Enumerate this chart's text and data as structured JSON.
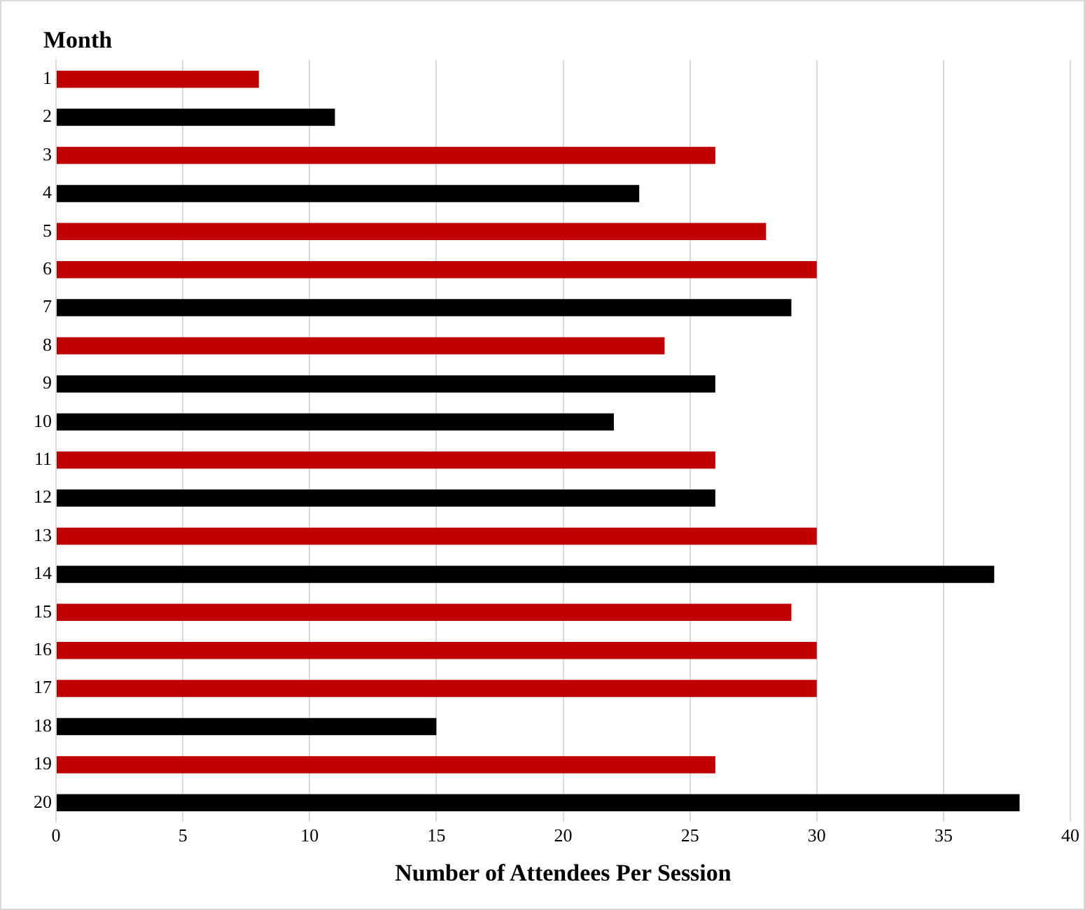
{
  "chart_data": {
    "type": "bar",
    "orientation": "horizontal",
    "ylabel": "Month",
    "xlabel": "Number of Attendees Per Session",
    "categories": [
      "1",
      "2",
      "3",
      "4",
      "5",
      "6",
      "7",
      "8",
      "9",
      "10",
      "11",
      "12",
      "13",
      "14",
      "15",
      "16",
      "17",
      "18",
      "19",
      "20"
    ],
    "values": [
      8,
      11,
      26,
      23,
      28,
      30,
      29,
      24,
      26,
      22,
      26,
      26,
      30,
      37,
      29,
      30,
      30,
      15,
      26,
      38
    ],
    "colors": [
      "#c00000",
      "#000000",
      "#c00000",
      "#000000",
      "#c00000",
      "#c00000",
      "#000000",
      "#c00000",
      "#000000",
      "#000000",
      "#c00000",
      "#000000",
      "#c00000",
      "#000000",
      "#c00000",
      "#c00000",
      "#c00000",
      "#000000",
      "#c00000",
      "#000000"
    ],
    "xlim": [
      0,
      40
    ],
    "xticks": [
      0,
      5,
      10,
      15,
      20,
      25,
      30,
      35,
      40
    ],
    "grid": "x",
    "legend": false
  }
}
